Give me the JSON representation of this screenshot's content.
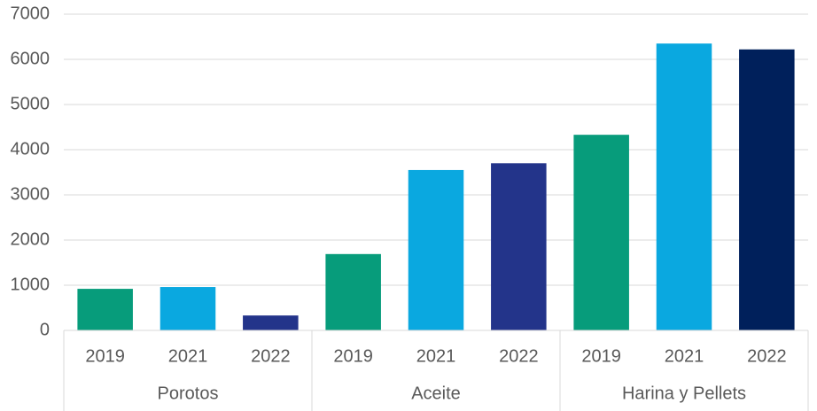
{
  "chart_data": {
    "type": "bar",
    "groups": [
      {
        "name": "Porotos",
        "categories": [
          "2019",
          "2021",
          "2022"
        ],
        "values": [
          920,
          960,
          330
        ],
        "colors": [
          "#079c7b",
          "#0aa8e0",
          "#23348a"
        ]
      },
      {
        "name": "Aceite",
        "categories": [
          "2019",
          "2021",
          "2022"
        ],
        "values": [
          1690,
          3550,
          3700
        ],
        "colors": [
          "#079c7b",
          "#0aa8e0",
          "#23348a"
        ]
      },
      {
        "name": "Harina y Pellets",
        "categories": [
          "2019",
          "2021",
          "2022"
        ],
        "values": [
          4330,
          6350,
          6220
        ],
        "colors": [
          "#079c7b",
          "#0aa8e0",
          "#00205b"
        ]
      }
    ],
    "ylim": [
      0,
      7000
    ],
    "yticks": [
      0,
      1000,
      2000,
      3000,
      4000,
      5000,
      6000,
      7000
    ],
    "grid": true
  }
}
